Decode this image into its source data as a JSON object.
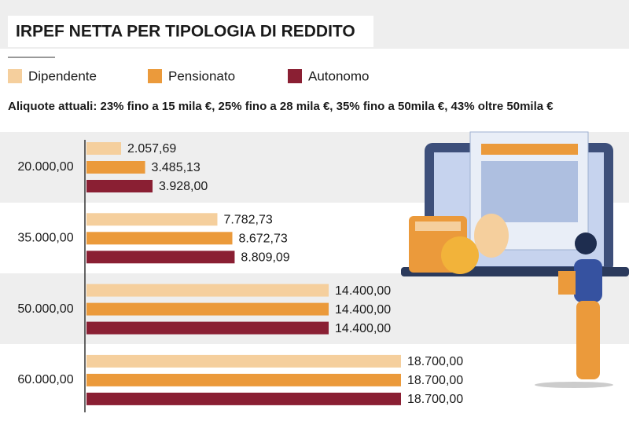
{
  "chart_data": {
    "type": "bar",
    "orientation": "horizontal",
    "title": "IRPEF NETTA PER TIPOLOGIA DI REDDITO",
    "subtitle": "Aliquote attuali: 23% fino a 15 mila €, 25% fino a 28 mila €, 35% fino a 50mila €, 43% oltre 50mila €",
    "categories": [
      "20.000,00",
      "35.000,00",
      "50.000,00",
      "60.000,00"
    ],
    "series": [
      {
        "name": "Dipendente",
        "color": "#f5cf9d",
        "values": [
          2057.69,
          7782.73,
          14400.0,
          18700.0
        ],
        "value_labels": [
          "2.057,69",
          "7.782,73",
          "14.400,00",
          "18.700,00"
        ]
      },
      {
        "name": "Pensionato",
        "color": "#eb9a3b",
        "values": [
          3485.13,
          8672.73,
          14400.0,
          18700.0
        ],
        "value_labels": [
          "3.485,13",
          "8.672,73",
          "14.400,00",
          "18.700,00"
        ]
      },
      {
        "name": "Autonomo",
        "color": "#8a1f33",
        "values": [
          3928.0,
          8809.09,
          14400.0,
          18700.0
        ],
        "value_labels": [
          "3.928,00",
          "8.809,09",
          "14.400,00",
          "18.700,00"
        ]
      }
    ]
  }
}
